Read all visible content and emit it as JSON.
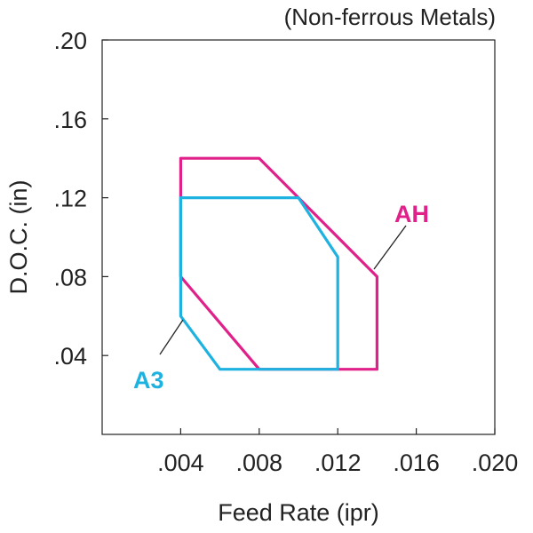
{
  "chart_data": {
    "type": "area",
    "title": "(Non-ferrous Metals)",
    "xlabel": "Feed Rate (ipr)",
    "ylabel": "D.O.C. (in)",
    "xlim": [
      0,
      0.02
    ],
    "ylim": [
      0,
      0.2
    ],
    "x_ticks": [
      0.004,
      0.008,
      0.012,
      0.016,
      0.02
    ],
    "x_tick_labels": [
      ".004",
      ".008",
      ".012",
      ".016",
      ".020"
    ],
    "y_ticks": [
      0.04,
      0.08,
      0.12,
      0.16,
      0.2
    ],
    "y_tick_labels": [
      ".04",
      ".08",
      ".12",
      ".16",
      ".20"
    ],
    "grid": false,
    "series": [
      {
        "name": "AH",
        "color": "#e0218a",
        "polygon": [
          [
            0.004,
            0.08
          ],
          [
            0.004,
            0.14
          ],
          [
            0.008,
            0.14
          ],
          [
            0.014,
            0.08
          ],
          [
            0.014,
            0.033
          ],
          [
            0.008,
            0.033
          ]
        ]
      },
      {
        "name": "A3",
        "color": "#1eb2e0",
        "polygon": [
          [
            0.004,
            0.06
          ],
          [
            0.004,
            0.12
          ],
          [
            0.01,
            0.12
          ],
          [
            0.012,
            0.09
          ],
          [
            0.012,
            0.033
          ],
          [
            0.006,
            0.033
          ]
        ]
      }
    ],
    "annotations": [
      {
        "text": "AH",
        "series": "AH"
      },
      {
        "text": "A3",
        "series": "A3"
      }
    ]
  }
}
